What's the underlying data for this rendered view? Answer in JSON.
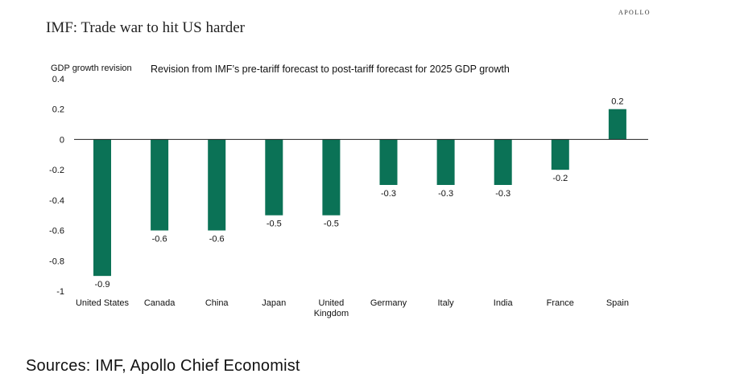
{
  "brand": "APOLLO",
  "title": "IMF: Trade war to hit US harder",
  "source": "Sources: IMF, Apollo Chief Economist",
  "colors": {
    "bar": "#0b7256",
    "axis": "#222222",
    "text": "#111111"
  },
  "chart_data": {
    "type": "bar",
    "title": "Revision from IMF’s pre-tariff forecast to post-tariff forecast for 2025 GDP growth",
    "ylabel": "GDP growth revision",
    "xlabel": "",
    "categories": [
      "United States",
      "Canada",
      "China",
      "Japan",
      "United Kingdom",
      "Germany",
      "Italy",
      "India",
      "France",
      "Spain"
    ],
    "values": [
      -0.9,
      -0.6,
      -0.6,
      -0.5,
      -0.5,
      -0.3,
      -0.3,
      -0.3,
      -0.2,
      0.2
    ],
    "data_labels": [
      "-0.9",
      "-0.6",
      "-0.6",
      "-0.5",
      "-0.5",
      "-0.3",
      "-0.3",
      "-0.3",
      "-0.2",
      "0.2"
    ],
    "ylim": [
      -1,
      0.4
    ],
    "yticks": [
      "0.4",
      "0.2",
      "0",
      "-0.2",
      "-0.4",
      "-0.6",
      "-0.8",
      "-1"
    ],
    "ytick_values": [
      0.4,
      0.2,
      0,
      -0.2,
      -0.4,
      -0.6,
      -0.8,
      -1
    ],
    "grid": false,
    "legend": "none"
  }
}
